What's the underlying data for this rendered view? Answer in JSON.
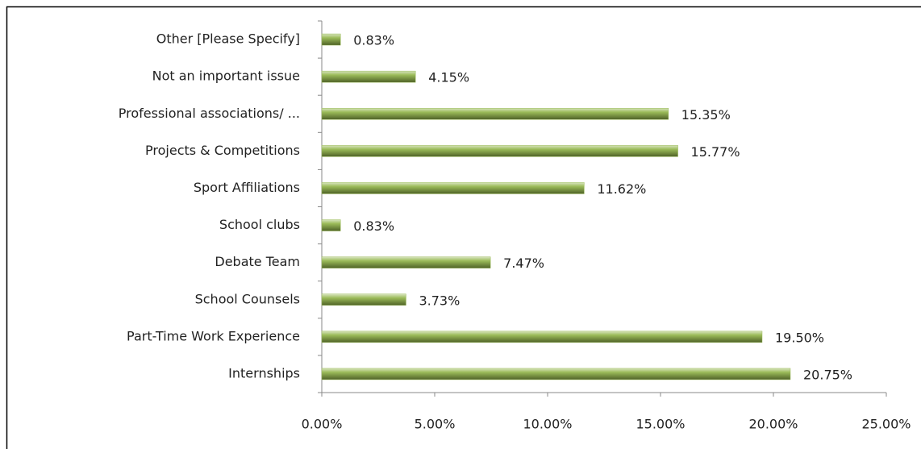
{
  "chart_data": {
    "type": "bar",
    "orientation": "horizontal",
    "categories": [
      "Other [Please Specify]",
      "Not an important issue",
      "Professional associations/ ...",
      "Projects & Competitions",
      "Sport Affiliations",
      "School clubs",
      "Debate Team",
      "School Counsels",
      "Part-Time Work Experience",
      "Internships"
    ],
    "values": [
      0.83,
      4.15,
      15.35,
      15.77,
      11.62,
      0.83,
      7.47,
      3.73,
      19.5,
      20.75
    ],
    "value_labels": [
      "0.83%",
      "4.15%",
      "15.35%",
      "15.77%",
      "11.62%",
      "0.83%",
      "7.47%",
      "3.73%",
      "19.50%",
      "20.75%"
    ],
    "color": "#9bbb59",
    "xlim": [
      0,
      25
    ],
    "xticks": [
      {
        "value": 0,
        "label": "0.00%"
      },
      {
        "value": 5,
        "label": "5.00%"
      },
      {
        "value": 10,
        "label": "10.00%"
      },
      {
        "value": 15,
        "label": "15.00%"
      },
      {
        "value": 20,
        "label": "20.00%"
      },
      {
        "value": 25,
        "label": "25.00%"
      }
    ],
    "grid": false
  }
}
